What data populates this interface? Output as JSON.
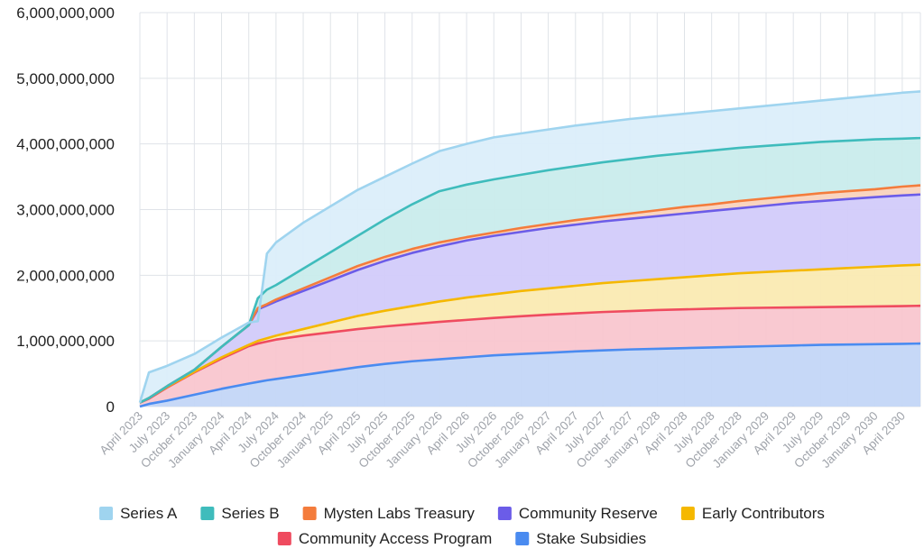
{
  "chart_data": {
    "type": "area",
    "stacked": true,
    "title": "",
    "xlabel": "",
    "ylabel": "",
    "ylim": [
      0,
      6000000000
    ],
    "y_ticks": [
      {
        "value": 0,
        "label": "0"
      },
      {
        "value": 1000000000,
        "label": "1,000,000,000"
      },
      {
        "value": 2000000000,
        "label": "2,000,000,000"
      },
      {
        "value": 3000000000,
        "label": "3,000,000,000"
      },
      {
        "value": 4000000000,
        "label": "4,000,000,000"
      },
      {
        "value": 5000000000,
        "label": "5,000,000,000"
      },
      {
        "value": 6000000000,
        "label": "6,000,000,000"
      }
    ],
    "x_range": [
      "2023-04",
      "2030-06"
    ],
    "x_ticks": [
      "April 2023",
      "July 2023",
      "October 2023",
      "January 2024",
      "April 2024",
      "July 2024",
      "October 2024",
      "January 2025",
      "April 2025",
      "July 2025",
      "October 2025",
      "January 2026",
      "April 2026",
      "July 2026",
      "October 2026",
      "January 2027",
      "April 2027",
      "July 2027",
      "October 2027",
      "January 2028",
      "April 2028",
      "July 2028",
      "October 2028",
      "January 2029",
      "April 2029",
      "July 2029",
      "October 2029",
      "January 2030",
      "April 2030"
    ],
    "x_tick_dates": [
      "2023-04",
      "2023-07",
      "2023-10",
      "2024-01",
      "2024-04",
      "2024-07",
      "2024-10",
      "2025-01",
      "2025-04",
      "2025-07",
      "2025-10",
      "2026-01",
      "2026-04",
      "2026-07",
      "2026-10",
      "2027-01",
      "2027-04",
      "2027-07",
      "2027-10",
      "2028-01",
      "2028-04",
      "2028-07",
      "2028-10",
      "2029-01",
      "2029-04",
      "2029-07",
      "2029-10",
      "2030-01",
      "2030-04"
    ],
    "grid": true,
    "legend_position": "bottom",
    "x": [
      "2023-04",
      "2023-05",
      "2023-07",
      "2023-10",
      "2024-01",
      "2024-04",
      "2024-05",
      "2024-06",
      "2024-07",
      "2024-10",
      "2025-01",
      "2025-04",
      "2025-07",
      "2025-10",
      "2026-01",
      "2026-04",
      "2026-07",
      "2026-10",
      "2027-01",
      "2027-04",
      "2027-07",
      "2027-10",
      "2028-01",
      "2028-04",
      "2028-07",
      "2028-10",
      "2029-01",
      "2029-04",
      "2029-07",
      "2029-10",
      "2030-01",
      "2030-04",
      "2030-06"
    ],
    "series": [
      {
        "name": "Stake Subsidies",
        "color": "#4a8bf0",
        "fill": "#c3d6f7",
        "values": [
          0,
          40,
          90,
          180,
          270,
          350,
          375,
          400,
          420,
          480,
          540,
          600,
          650,
          690,
          720,
          750,
          780,
          800,
          820,
          840,
          855,
          870,
          880,
          890,
          900,
          910,
          920,
          930,
          940,
          945,
          950,
          955,
          960
        ]
      },
      {
        "name": "Community Access Program",
        "color": "#ef4b5f",
        "fill": "#f9c6cf",
        "values": [
          60,
          120,
          290,
          520,
          730,
          920,
          960,
          990,
          1020,
          1080,
          1130,
          1180,
          1220,
          1255,
          1290,
          1320,
          1350,
          1375,
          1400,
          1420,
          1440,
          1455,
          1470,
          1480,
          1490,
          1500,
          1505,
          1510,
          1515,
          1520,
          1525,
          1530,
          1535
        ]
      },
      {
        "name": "Early Contributors",
        "color": "#f5b800",
        "fill": "#faeab2",
        "values": [
          60,
          130,
          300,
          530,
          750,
          940,
          1000,
          1040,
          1080,
          1180,
          1280,
          1380,
          1460,
          1530,
          1600,
          1660,
          1710,
          1760,
          1800,
          1840,
          1880,
          1910,
          1940,
          1970,
          2000,
          2030,
          2050,
          2070,
          2090,
          2110,
          2130,
          2150,
          2160
        ]
      },
      {
        "name": "Community Reserve",
        "color": "#6b5ce8",
        "fill": "#d2cbfa",
        "values": [
          60,
          130,
          310,
          560,
          910,
          1240,
          1480,
          1540,
          1600,
          1760,
          1920,
          2080,
          2220,
          2340,
          2440,
          2530,
          2600,
          2660,
          2720,
          2770,
          2820,
          2860,
          2900,
          2940,
          2980,
          3020,
          3060,
          3100,
          3130,
          3160,
          3190,
          3215,
          3230
        ]
      },
      {
        "name": "Mysten Labs Treasury",
        "color": "#f47c3c",
        "fill": "#f9d3bd",
        "values": [
          60,
          130,
          310,
          560,
          910,
          1240,
          1500,
          1560,
          1630,
          1800,
          1970,
          2140,
          2280,
          2400,
          2500,
          2580,
          2650,
          2720,
          2780,
          2840,
          2890,
          2940,
          2990,
          3040,
          3080,
          3130,
          3170,
          3210,
          3250,
          3280,
          3310,
          3350,
          3370
        ]
      },
      {
        "name": "Series B",
        "color": "#3fbcbc",
        "fill": "#c9ecec",
        "values": [
          60,
          130,
          310,
          560,
          910,
          1240,
          1650,
          1780,
          1850,
          2100,
          2350,
          2600,
          2850,
          3080,
          3280,
          3380,
          3460,
          3530,
          3600,
          3660,
          3720,
          3770,
          3820,
          3860,
          3900,
          3940,
          3970,
          4000,
          4030,
          4050,
          4070,
          4080,
          4090
        ]
      },
      {
        "name": "Series A",
        "color": "#9fd4ef",
        "fill": "#dbeefa",
        "values": [
          60,
          520,
          620,
          800,
          1050,
          1280,
          1300,
          2330,
          2500,
          2800,
          3050,
          3300,
          3500,
          3700,
          3890,
          4000,
          4100,
          4160,
          4220,
          4280,
          4330,
          4380,
          4420,
          4460,
          4500,
          4540,
          4580,
          4620,
          4660,
          4700,
          4740,
          4780,
          4800
        ]
      }
    ],
    "value_unit_note": "values in millions of tokens",
    "legend_rows": [
      [
        "Series A",
        "Series B",
        "Mysten Labs Treasury",
        "Community Reserve",
        "Early Contributors"
      ],
      [
        "Community Access Program",
        "Stake Subsidies"
      ]
    ]
  }
}
